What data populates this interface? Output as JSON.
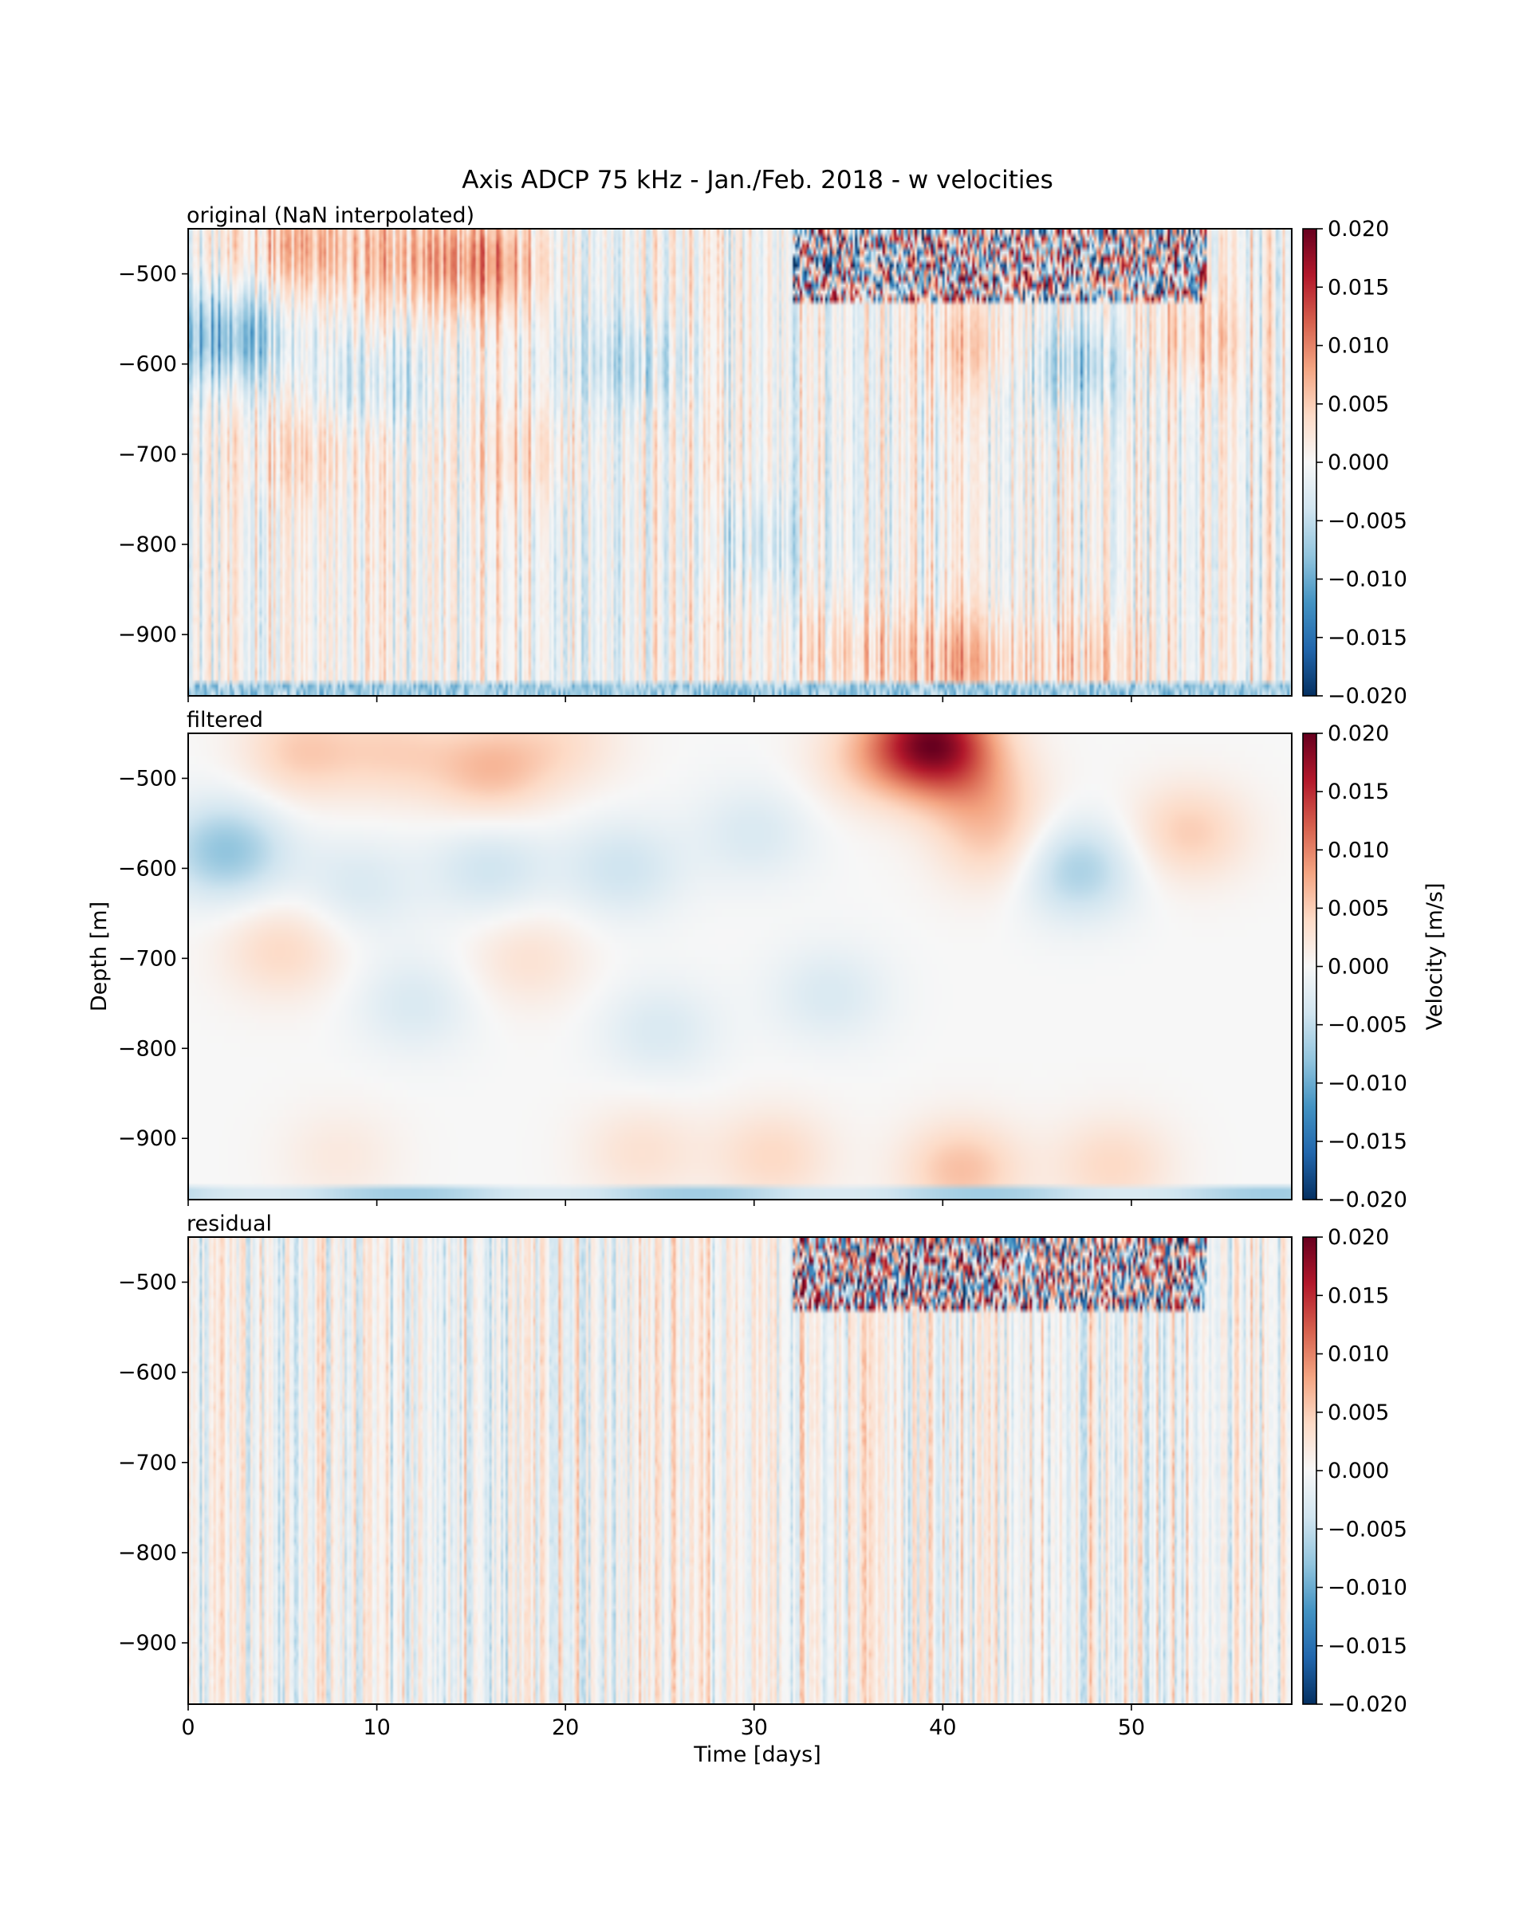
{
  "figure": {
    "title": "Axis ADCP 75 kHz - Jan./Feb. 2018 - w velocities",
    "xlabel": "Time [days]",
    "ylabel": "Depth [m]",
    "colorbar_label": "Velocity [m/s]"
  },
  "chart_data": [
    {
      "type": "heatmap",
      "panel_label": "original (NaN interpolated)",
      "colormap": "RdBu_r",
      "colormap_colors": [
        "#053061",
        "#2166ac",
        "#4393c3",
        "#92c5de",
        "#d1e5f0",
        "#f7f7f7",
        "#fddbc7",
        "#f4a582",
        "#d6604d",
        "#b2182b",
        "#67001f"
      ],
      "xlim": [
        0,
        58.5
      ],
      "ylim": [
        -968,
        -450
      ],
      "xticks": [
        0,
        10,
        20,
        30,
        40,
        50
      ],
      "yticks": [
        -500,
        -600,
        -700,
        -800,
        -900
      ],
      "ytick_labels": [
        "−500",
        "−600",
        "−700",
        "−800",
        "−900"
      ],
      "clim": [
        -0.02,
        0.02
      ],
      "colorbar_ticks": [
        0.02,
        0.015,
        0.01,
        0.005,
        0.0,
        -0.005,
        -0.01,
        -0.015,
        -0.02
      ],
      "colorbar_tick_labels": [
        "0.020",
        "0.015",
        "0.010",
        "0.005",
        "0.000",
        "−0.005",
        "−0.010",
        "−0.015",
        "−0.020"
      ],
      "show_xtick_labels": false,
      "field": {
        "description_features": "high-frequency vertical striations over a slow large-scale pattern; strong alternating signal near top between days 32-54; blue band at bottom",
        "large_scale_blobs": [
          {
            "t": 6,
            "z": -470,
            "w": 0.006
          },
          {
            "t": 12,
            "z": -480,
            "w": 0.005
          },
          {
            "t": 16,
            "z": -490,
            "w": 0.007
          },
          {
            "t": 2,
            "z": -570,
            "w": -0.009
          },
          {
            "t": 10,
            "z": -620,
            "w": -0.004
          },
          {
            "t": 24,
            "z": -600,
            "w": -0.004
          },
          {
            "t": 42,
            "z": -580,
            "w": 0.004
          },
          {
            "t": 47,
            "z": -600,
            "w": -0.006
          },
          {
            "t": 53,
            "z": -570,
            "w": 0.004
          },
          {
            "t": 6,
            "z": -700,
            "w": 0.003
          },
          {
            "t": 18,
            "z": -700,
            "w": 0.003
          },
          {
            "t": 30,
            "z": -800,
            "w": -0.003
          },
          {
            "t": 35,
            "z": -920,
            "w": 0.004
          },
          {
            "t": 41,
            "z": -930,
            "w": 0.006
          },
          {
            "t": 48,
            "z": -930,
            "w": 0.004
          }
        ],
        "high_freq_amplitude": 0.008,
        "top_noise_region": {
          "t0": 32,
          "t1": 54,
          "z0": -450,
          "z1": -530,
          "w": 0.016
        },
        "bottom_band": {
          "z0": -968,
          "z1": -950,
          "w": -0.007
        }
      }
    },
    {
      "type": "heatmap",
      "panel_label": "filtered",
      "colormap": "RdBu_r",
      "xlim": [
        0,
        58.5
      ],
      "ylim": [
        -968,
        -450
      ],
      "xticks": [
        0,
        10,
        20,
        30,
        40,
        50
      ],
      "yticks": [
        -500,
        -600,
        -700,
        -800,
        -900
      ],
      "ytick_labels": [
        "−500",
        "−600",
        "−700",
        "−800",
        "−900"
      ],
      "clim": [
        -0.02,
        0.02
      ],
      "colorbar_ticks": [
        0.02,
        0.015,
        0.01,
        0.005,
        0.0,
        -0.005,
        -0.01,
        -0.015,
        -0.02
      ],
      "colorbar_tick_labels": [
        "0.020",
        "0.015",
        "0.010",
        "0.005",
        "0.000",
        "−0.005",
        "−0.010",
        "−0.015",
        "−0.020"
      ],
      "show_xtick_labels": false,
      "field": {
        "description_features": "smooth low-pass field; red blob at top days 5-20; blue column days 1-4 at -550 to -650; red patch near day 39 top; warm band near -900 to -950; blue strip at bottom",
        "large_scale_blobs": [
          {
            "t": 6,
            "z": -470,
            "w": 0.005
          },
          {
            "t": 11,
            "z": -470,
            "w": 0.004
          },
          {
            "t": 16,
            "z": -490,
            "w": 0.006
          },
          {
            "t": 20,
            "z": -460,
            "w": 0.003
          },
          {
            "t": 2,
            "z": -580,
            "w": -0.008
          },
          {
            "t": 9,
            "z": -620,
            "w": -0.003
          },
          {
            "t": 16,
            "z": -600,
            "w": -0.004
          },
          {
            "t": 23,
            "z": -600,
            "w": -0.004
          },
          {
            "t": 30,
            "z": -560,
            "w": -0.003
          },
          {
            "t": 36,
            "z": -480,
            "w": 0.004
          },
          {
            "t": 39.5,
            "z": -460,
            "w": 0.018
          },
          {
            "t": 42,
            "z": -520,
            "w": 0.005
          },
          {
            "t": 43,
            "z": -580,
            "w": 0.004
          },
          {
            "t": 47,
            "z": -600,
            "w": -0.007
          },
          {
            "t": 53,
            "z": -560,
            "w": 0.005
          },
          {
            "t": 5,
            "z": -690,
            "w": 0.004
          },
          {
            "t": 18,
            "z": -700,
            "w": 0.003
          },
          {
            "t": 12,
            "z": -750,
            "w": -0.003
          },
          {
            "t": 25,
            "z": -780,
            "w": -0.003
          },
          {
            "t": 34,
            "z": -740,
            "w": -0.003
          },
          {
            "t": 31,
            "z": -920,
            "w": 0.004
          },
          {
            "t": 41,
            "z": -935,
            "w": 0.006
          },
          {
            "t": 49,
            "z": -930,
            "w": 0.004
          },
          {
            "t": 8,
            "z": -920,
            "w": 0.002
          },
          {
            "t": 24,
            "z": -915,
            "w": 0.003
          }
        ],
        "high_freq_amplitude": 0.0,
        "bottom_band": {
          "z0": -968,
          "z1": -950,
          "w": -0.005
        }
      }
    },
    {
      "type": "heatmap",
      "panel_label": "residual",
      "colormap": "RdBu_r",
      "xlim": [
        0,
        58.5
      ],
      "ylim": [
        -968,
        -450
      ],
      "xticks": [
        0,
        10,
        20,
        30,
        40,
        50
      ],
      "xtick_labels": [
        "0",
        "10",
        "20",
        "30",
        "40",
        "50"
      ],
      "yticks": [
        -500,
        -600,
        -700,
        -800,
        -900
      ],
      "ytick_labels": [
        "−500",
        "−600",
        "−700",
        "−800",
        "−900"
      ],
      "clim": [
        -0.02,
        0.02
      ],
      "colorbar_ticks": [
        0.02,
        0.015,
        0.01,
        0.005,
        0.0,
        -0.005,
        -0.01,
        -0.015,
        -0.02
      ],
      "colorbar_tick_labels": [
        "0.020",
        "0.015",
        "0.010",
        "0.005",
        "0.000",
        "−0.005",
        "−0.010",
        "−0.015",
        "−0.020"
      ],
      "show_xtick_labels": true,
      "field": {
        "description_features": "high-frequency vertical striations only; strong alternating signal near top days 32-54",
        "large_scale_blobs": [],
        "high_freq_amplitude": 0.008,
        "top_noise_region": {
          "t0": 32,
          "t1": 54,
          "z0": -450,
          "z1": -530,
          "w": 0.016
        }
      }
    }
  ]
}
